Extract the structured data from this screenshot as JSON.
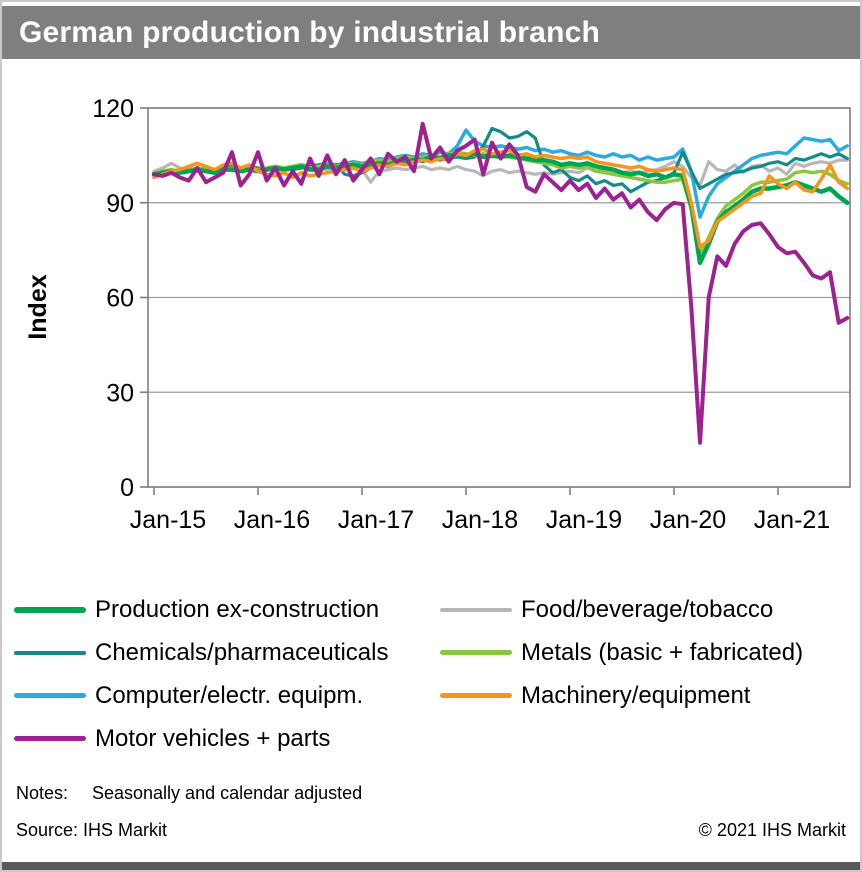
{
  "title": "German production by industrial branch",
  "notes": {
    "label": "Notes:",
    "text": "Seasonally and calendar adjusted"
  },
  "source": {
    "label": "Source: IHS Markit",
    "copyright": "© 2021 IHS Markit"
  },
  "colors": {
    "titlebar_bg": "#7f7f7f",
    "grid": "#9d9d9d",
    "frame": "#7f7f7f",
    "bottom_bar": "#595959"
  },
  "legend": {
    "columns": [
      [
        "production",
        "chemicals",
        "computer",
        "motor"
      ],
      [
        "food",
        "metals",
        "machinery"
      ]
    ]
  },
  "chart_data": {
    "type": "line",
    "title": "German production by industrial branch",
    "xlabel": "",
    "ylabel": "Index",
    "ylim": [
      0,
      120
    ],
    "yticks": [
      0,
      30,
      60,
      90,
      120
    ],
    "grid": "horizontal",
    "x_tick_labels": [
      "Jan-15",
      "Jan-16",
      "Jan-17",
      "Jan-18",
      "Jan-19",
      "Jan-20",
      "Jan-21"
    ],
    "x_frequency": "monthly",
    "x_range": "Jan-2015 to Sep-2021",
    "n_points": 81,
    "series": [
      {
        "key": "food",
        "name": "Food/beverage/tobacco",
        "color": "#b8b8b8",
        "width": 3.2,
        "values": [
          100,
          101,
          102.5,
          101,
          100.5,
          101,
          100.5,
          100,
          100.5,
          101,
          100.5,
          101,
          100.5,
          101,
          101.5,
          101,
          100.5,
          101,
          101.5,
          101,
          100.5,
          100,
          100.5,
          101,
          100.5,
          96.5,
          100,
          100.5,
          101,
          100.5,
          101,
          101.5,
          100.5,
          101,
          100.5,
          101.5,
          100.5,
          100,
          98.5,
          100,
          100.5,
          99.5,
          100,
          99.5,
          99,
          99.5,
          99,
          99.5,
          100,
          99.5,
          101,
          100,
          100.5,
          100,
          99.5,
          100,
          99.5,
          100,
          100.5,
          101.5,
          103,
          101.5,
          98,
          95.5,
          103,
          100.5,
          100,
          102,
          99.5,
          101.5,
          102,
          100,
          101,
          99,
          102.5,
          101.5,
          102.5,
          103,
          102.5,
          103.5,
          103.5
        ]
      },
      {
        "key": "computer",
        "name": "Computer/electr. equipm.",
        "color": "#2babe2",
        "width": 3.5,
        "values": [
          99,
          99.5,
          100,
          99.5,
          100,
          100,
          100.5,
          100,
          100.5,
          101,
          100.5,
          101,
          100.5,
          101,
          101.5,
          101,
          101.5,
          102,
          101.5,
          102,
          102.5,
          102,
          102.5,
          103,
          102.5,
          103,
          104,
          103.5,
          104.5,
          105,
          104.5,
          105.5,
          105,
          106,
          105.5,
          108,
          113,
          109.5,
          108,
          107.5,
          108,
          107.5,
          107,
          107.5,
          106.5,
          107,
          106,
          106.5,
          105.5,
          105,
          106,
          105,
          104.5,
          105.5,
          104.5,
          105,
          103.5,
          104.5,
          103.5,
          104,
          104.5,
          107,
          100,
          85.5,
          92,
          96,
          98,
          100,
          102,
          104,
          105,
          105.5,
          106,
          105.5,
          108,
          110.5,
          110,
          109.5,
          110,
          106.5,
          108
        ]
      },
      {
        "key": "chemicals",
        "name": "Chemicals/pharmaceuticals",
        "color": "#128b8c",
        "width": 3.2,
        "values": [
          98.5,
          99,
          99.5,
          100,
          100,
          100.5,
          101,
          100.5,
          101,
          101.5,
          101,
          101.5,
          101,
          100.5,
          101.5,
          101,
          100.5,
          101,
          101.5,
          102,
          101.5,
          102,
          99,
          98.5,
          99.5,
          101,
          102,
          101.5,
          102.5,
          103,
          103.5,
          103,
          104,
          103.5,
          104,
          104.5,
          104,
          104.5,
          108,
          113.5,
          112.5,
          110.5,
          111,
          112.5,
          110.5,
          102,
          99.5,
          100.5,
          98,
          97,
          98.5,
          96,
          97,
          95.5,
          96,
          93.5,
          95,
          96.5,
          97,
          98,
          99.5,
          106,
          100,
          94.5,
          96,
          97.5,
          99,
          99.5,
          100,
          101,
          101.5,
          102.5,
          103,
          102,
          104,
          103.5,
          104.5,
          105.5,
          104.5,
          105.5,
          104
        ]
      },
      {
        "key": "metals",
        "name": "Metals (basic + fabricated)",
        "color": "#8cc63e",
        "width": 3.5,
        "values": [
          99.5,
          100,
          100.5,
          100,
          100.5,
          101,
          100.5,
          100,
          100.5,
          101,
          100.5,
          101,
          100.5,
          101,
          101.5,
          101,
          101.5,
          102,
          101,
          101.5,
          102,
          101.5,
          102,
          102.5,
          102,
          103,
          103.5,
          103,
          104,
          104.5,
          104,
          104.5,
          105,
          104.5,
          105.5,
          106,
          105.5,
          105,
          105.5,
          104.5,
          105,
          104.5,
          104,
          103.5,
          103,
          102.5,
          102,
          101,
          101.5,
          101,
          101.5,
          100,
          99.5,
          99,
          98.5,
          98,
          97.5,
          97,
          96.5,
          96.5,
          97,
          97.5,
          88,
          73.5,
          79,
          85,
          89,
          91,
          93,
          95.5,
          96.5,
          96.5,
          97,
          97.5,
          99.5,
          100,
          99.5,
          100,
          99,
          97,
          96
        ]
      },
      {
        "key": "production",
        "name": "Production ex-construction",
        "color": "#00a64f",
        "width": 4.5,
        "values": [
          99,
          99.5,
          100,
          99.5,
          100,
          100.5,
          100,
          99.5,
          100.5,
          100.5,
          100,
          100.5,
          100,
          100.5,
          101,
          100.5,
          101,
          101.5,
          100.5,
          100.5,
          101.5,
          101,
          101.5,
          102,
          101.5,
          102,
          102.5,
          102,
          103,
          103,
          103.5,
          103.5,
          104.5,
          104,
          105,
          105,
          105,
          105.5,
          104.5,
          105,
          104.5,
          105,
          104.5,
          104,
          103.5,
          103.5,
          103,
          102,
          102.5,
          102,
          102.5,
          101.5,
          101,
          100.5,
          99.5,
          99,
          99.5,
          98.5,
          99,
          98,
          99,
          98.5,
          89,
          71,
          77,
          84,
          87,
          89,
          91,
          93.5,
          94.5,
          94.5,
          95,
          95.5,
          96.5,
          95.5,
          94.5,
          93.5,
          94.5,
          92,
          90
        ]
      },
      {
        "key": "machinery",
        "name": "Machinery/equipment",
        "color": "#f7941d",
        "width": 3.5,
        "values": [
          98,
          99,
          100,
          100.5,
          101.5,
          102.5,
          101.5,
          100.5,
          102,
          102.5,
          101,
          102,
          100,
          99,
          98.5,
          99.5,
          98,
          99.5,
          98.5,
          99,
          99.5,
          100,
          100.5,
          101,
          100,
          101,
          102,
          101.5,
          102.5,
          102,
          103,
          103.5,
          103,
          104,
          103.5,
          105.5,
          105,
          106.5,
          107,
          105.5,
          106,
          106.5,
          105,
          105.5,
          104.5,
          105,
          104.5,
          104,
          104.5,
          104,
          104.5,
          103,
          102.5,
          102,
          101.5,
          101,
          101.5,
          100.5,
          100,
          100.5,
          101,
          100.5,
          90,
          76,
          78,
          84,
          86,
          88,
          90,
          92,
          93,
          98.5,
          96,
          94.5,
          96.5,
          94,
          93.5,
          97.5,
          102,
          96.5,
          94.5
        ]
      },
      {
        "key": "motor",
        "name": "Motor vehicles + parts",
        "color": "#9c2191",
        "width": 4,
        "values": [
          99,
          98.5,
          99.5,
          98,
          97,
          101,
          96.5,
          98,
          99.5,
          106,
          95.5,
          99,
          106,
          97,
          101,
          95.5,
          100,
          96,
          104,
          98.5,
          105,
          99,
          103.5,
          97,
          100.5,
          104,
          99,
          105.5,
          103,
          104.5,
          100,
          115,
          104,
          107.5,
          103,
          106.5,
          108,
          110,
          99,
          109,
          104,
          108.5,
          105,
          95,
          93.5,
          99,
          96.5,
          94,
          97,
          94,
          96,
          91.5,
          94.5,
          91,
          93,
          88.5,
          91,
          87,
          84.5,
          88,
          90,
          89.5,
          57,
          14,
          60,
          73,
          70,
          77,
          81,
          83,
          83.5,
          80,
          76,
          74,
          74.5,
          71,
          67,
          66,
          68,
          52,
          53.5
        ]
      }
    ]
  }
}
